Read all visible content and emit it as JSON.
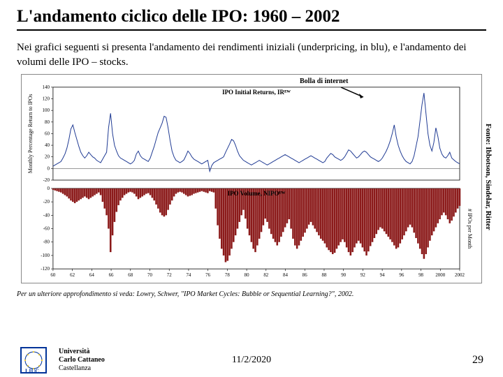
{
  "title": "L'andamento ciclico delle IPO: 1960 – 2002",
  "intro": "Nei grafici seguenti si presenta l'andamento dei rendimenti iniziali (underpricing, in blu), e l'andamento dei volumi delle IPO – stocks.",
  "annotation": "Bolla di internet",
  "source": "Fonte: Ibbotson, Sindelar, Ritter",
  "footnote": "Per un ulteriore approfondimento si veda: Lowry, Schwer, \"IPO Market Cycles: Bubble or Sequential Learning?\", 2002.",
  "university": {
    "l1": "Università",
    "l2": "Carlo Cattaneo",
    "l3": "Castellanza"
  },
  "date": "11/2/2020",
  "page": "29",
  "chart": {
    "top_title": "IPO Initial Returns, IRᴱᵂ",
    "bottom_title": "IPO Volume, NIPOᴱᵂ",
    "y_left_top_label": "Monthly Percentage Return to IPOs",
    "y_right_label": "# IPOs per Month",
    "top": {
      "ylim": [
        -20,
        140
      ],
      "yticks": [
        -20,
        0,
        20,
        40,
        60,
        80,
        100,
        120,
        140
      ],
      "line_color": "#1f3a93",
      "line_width": 1.0,
      "series": [
        4,
        6,
        8,
        10,
        12,
        18,
        25,
        35,
        50,
        68,
        75,
        62,
        50,
        38,
        28,
        22,
        18,
        22,
        28,
        24,
        20,
        18,
        14,
        12,
        10,
        16,
        22,
        28,
        70,
        95,
        60,
        40,
        30,
        22,
        18,
        16,
        14,
        12,
        10,
        8,
        10,
        14,
        25,
        30,
        22,
        18,
        16,
        14,
        12,
        18,
        28,
        38,
        50,
        62,
        70,
        78,
        90,
        88,
        70,
        48,
        30,
        20,
        14,
        12,
        10,
        12,
        15,
        22,
        30,
        26,
        20,
        16,
        14,
        12,
        10,
        8,
        10,
        12,
        14,
        -5,
        5,
        10,
        12,
        14,
        16,
        18,
        20,
        28,
        35,
        42,
        50,
        48,
        40,
        30,
        22,
        18,
        14,
        12,
        10,
        8,
        6,
        8,
        10,
        12,
        14,
        12,
        10,
        8,
        6,
        8,
        10,
        12,
        14,
        16,
        18,
        20,
        22,
        24,
        22,
        20,
        18,
        16,
        14,
        12,
        10,
        12,
        14,
        16,
        18,
        20,
        22,
        20,
        18,
        16,
        14,
        12,
        10,
        12,
        18,
        22,
        26,
        24,
        20,
        18,
        16,
        14,
        16,
        20,
        26,
        32,
        30,
        26,
        22,
        18,
        20,
        24,
        28,
        30,
        28,
        24,
        20,
        18,
        16,
        14,
        12,
        14,
        18,
        24,
        30,
        38,
        48,
        60,
        75,
        55,
        40,
        30,
        22,
        16,
        12,
        10,
        8,
        12,
        22,
        38,
        55,
        82,
        110,
        130,
        95,
        60,
        40,
        30,
        45,
        70,
        55,
        35,
        25,
        20,
        18,
        22,
        28,
        18,
        15,
        12,
        10,
        8
      ]
    },
    "bottom": {
      "ylim": [
        -120,
        0
      ],
      "yticks": [
        -120,
        -100,
        -80,
        -60,
        -40,
        -20,
        0
      ],
      "bar_color": "#8b1a1a",
      "series": [
        2,
        3,
        4,
        5,
        6,
        8,
        10,
        12,
        15,
        18,
        20,
        22,
        20,
        18,
        16,
        14,
        12,
        14,
        16,
        14,
        12,
        10,
        8,
        6,
        10,
        20,
        30,
        40,
        60,
        95,
        70,
        50,
        35,
        25,
        18,
        14,
        10,
        8,
        6,
        5,
        6,
        8,
        12,
        16,
        14,
        12,
        10,
        8,
        7,
        10,
        14,
        18,
        24,
        30,
        36,
        40,
        42,
        40,
        32,
        24,
        18,
        12,
        8,
        6,
        5,
        6,
        8,
        10,
        12,
        11,
        10,
        8,
        7,
        6,
        5,
        4,
        5,
        6,
        7,
        4,
        5,
        6,
        30,
        55,
        75,
        90,
        100,
        110,
        108,
        100,
        90,
        80,
        70,
        60,
        50,
        40,
        32,
        45,
        60,
        70,
        80,
        90,
        95,
        85,
        75,
        65,
        55,
        45,
        50,
        60,
        68,
        75,
        80,
        85,
        80,
        72,
        65,
        58,
        52,
        46,
        60,
        75,
        85,
        90,
        85,
        78,
        72,
        66,
        60,
        54,
        50,
        55,
        60,
        65,
        70,
        75,
        78,
        82,
        88,
        92,
        95,
        98,
        96,
        90,
        85,
        80,
        76,
        80,
        88,
        95,
        100,
        95,
        88,
        82,
        78,
        82,
        88,
        94,
        100,
        94,
        86,
        80,
        74,
        68,
        62,
        58,
        60,
        64,
        68,
        72,
        76,
        80,
        85,
        90,
        88,
        82,
        76,
        70,
        64,
        58,
        54,
        58,
        66,
        74,
        82,
        90,
        98,
        105,
        98,
        88,
        78,
        70,
        64,
        58,
        52,
        46,
        40,
        36,
        40,
        46,
        52,
        48,
        42,
        36,
        30,
        26
      ]
    },
    "xticks": [
      "60",
      "62",
      "64",
      "66",
      "68",
      "70",
      "72",
      "74",
      "76",
      "78",
      "80",
      "82",
      "84",
      "86",
      "88",
      "90",
      "92",
      "94",
      "96",
      "98",
      "2000",
      "2002"
    ]
  },
  "colors": {
    "annotation_box": "#ffffff",
    "arrow": "#000000"
  }
}
